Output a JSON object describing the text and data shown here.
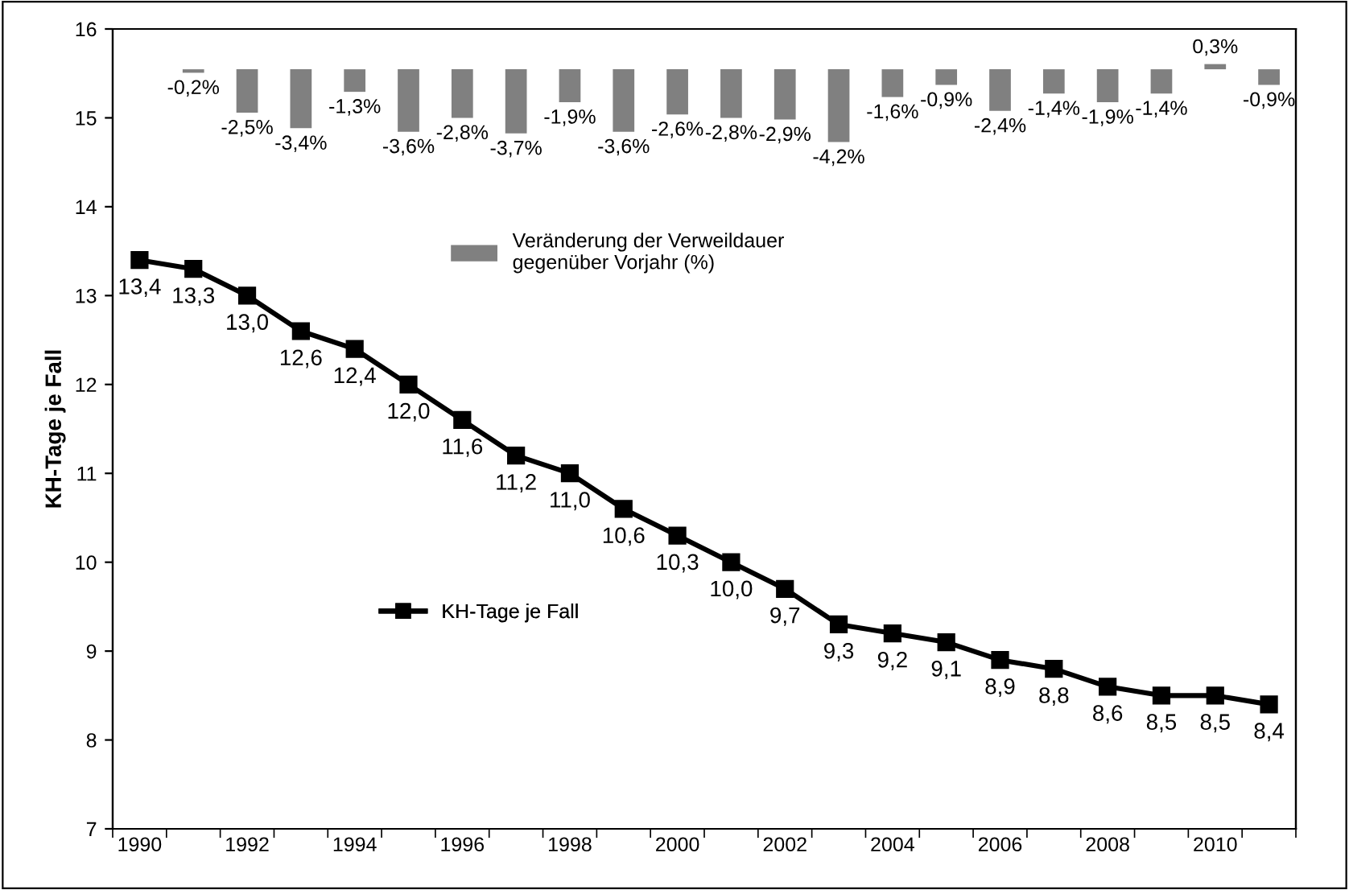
{
  "chart_data": {
    "type": "line",
    "ylabel": "KH-Tage je Fall",
    "categories": [
      "1990",
      null,
      "1992",
      null,
      "1994",
      null,
      "1996",
      null,
      "1998",
      null,
      "2000",
      null,
      "2002",
      null,
      "2004",
      null,
      "2006",
      null,
      "2008",
      null,
      "2010",
      null
    ],
    "series": [
      {
        "name": "Veränderung der Verweildauer\ngegenüber Vorjahr (%)",
        "type": "bar",
        "axis": "y2",
        "color": "#808080",
        "values": [
          null,
          -0.2,
          -2.5,
          -3.4,
          -1.3,
          -3.6,
          -2.8,
          -3.7,
          -1.9,
          -3.6,
          -2.6,
          -2.8,
          -2.9,
          -4.2,
          -1.6,
          -0.9,
          -2.4,
          -1.4,
          -1.9,
          -1.4,
          0.3,
          -0.9
        ],
        "value_labels": [
          null,
          "-0,2%",
          "-2,5%",
          "-3,4%",
          "-1,3%",
          "-3,6%",
          "-2,8%",
          "-3,7%",
          "-1,9%",
          "-3,6%",
          "-2,6%",
          "-2,8%",
          "-2,9%",
          "-4,2%",
          "-1,6%",
          "-0,9%",
          "-2,4%",
          "-1,4%",
          "-1,9%",
          "-1,4%",
          "0,3%",
          "-0,9%"
        ]
      },
      {
        "name": "KH-Tage je Fall",
        "color": "#000000",
        "marker": "square",
        "line_style": "solid",
        "values": [
          13.4,
          13.3,
          13.0,
          12.6,
          12.4,
          12.0,
          11.6,
          11.2,
          11.0,
          10.6,
          10.3,
          10.0,
          9.7,
          9.3,
          9.2,
          9.1,
          8.9,
          8.8,
          8.6,
          8.5,
          8.5,
          8.4
        ],
        "value_labels": [
          "13,4",
          "13,3",
          "13,0",
          "12,6",
          "12,4",
          "12,0",
          "11,6",
          "11,2",
          "11,0",
          "10,6",
          "10,3",
          "10,0",
          "9,7",
          "9,3",
          "9,2",
          "9,1",
          "8,9",
          "8,8",
          "8,6",
          "8,5",
          "8,5",
          "8,4"
        ]
      }
    ],
    "ylim": [
      7,
      16
    ],
    "yticks": [
      7,
      8,
      9,
      10,
      11,
      12,
      13,
      14,
      15,
      16
    ],
    "grid": false,
    "legend": "center"
  }
}
